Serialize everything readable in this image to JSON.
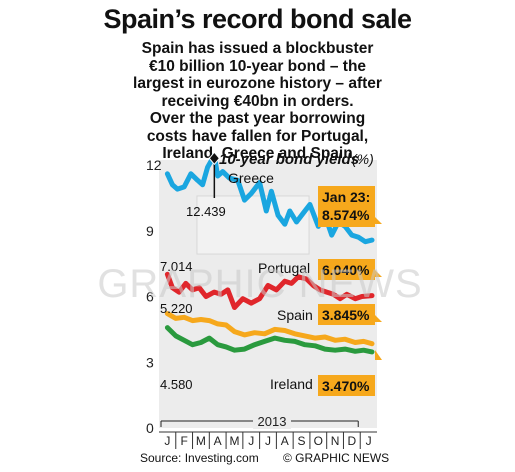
{
  "title": "Spain’s record bond sale",
  "subtitle_lines": [
    "Spain has issued a blockbuster",
    "€10 billion 10-year bond – the",
    "largest in eurozone history – after",
    "receiving €40bn in orders.",
    "Over the past year borrowing",
    "costs have fallen for Portugal,",
    "Ireland, Greece and Spain"
  ],
  "source": "Source: Investing.com",
  "credit": "© GRAPHIC NEWS",
  "watermark": "GRAPHIC NEWS",
  "chart_data": {
    "type": "line",
    "title": "10-year bond yields",
    "unit": "(%)",
    "x_axis": {
      "month_labels": [
        "J",
        "F",
        "M",
        "A",
        "M",
        "J",
        "J",
        "A",
        "S",
        "O",
        "N",
        "D",
        "J"
      ],
      "year_label": "2013"
    },
    "ylim": [
      0,
      12
    ],
    "y_ticks": [
      0,
      3,
      6,
      9,
      12
    ],
    "grid": false,
    "series": [
      {
        "name": "Greece",
        "color": "#1aa6e0",
        "x": [
          0,
          0.3,
          0.6,
          1.0,
          1.4,
          1.8,
          2.1,
          2.4,
          2.8,
          3.0,
          3.3,
          3.7,
          4.2,
          4.6,
          5.0,
          5.5,
          5.9,
          6.2,
          6.6,
          7.0,
          7.3,
          7.7,
          8.1,
          8.5,
          9.0,
          9.4,
          9.8,
          10.2,
          10.6,
          11.0,
          11.4,
          11.8,
          12.2
        ],
        "values": [
          11.6,
          11.1,
          10.9,
          11.0,
          11.6,
          11.3,
          11.1,
          11.9,
          12.44,
          11.5,
          11.7,
          11.4,
          11.3,
          10.4,
          10.7,
          11.2,
          9.9,
          10.8,
          9.7,
          9.3,
          9.9,
          9.4,
          9.8,
          10.2,
          9.2,
          9.7,
          8.8,
          9.4,
          9.2,
          8.8,
          8.7,
          8.5,
          8.574
        ]
      },
      {
        "name": "Portugal",
        "color": "#e0262b",
        "x": [
          0,
          0.3,
          0.7,
          1.1,
          1.5,
          1.9,
          2.3,
          2.8,
          3.2,
          3.6,
          4.0,
          4.5,
          5.0,
          5.5,
          6.0,
          6.5,
          7.0,
          7.4,
          7.8,
          8.3,
          8.7,
          9.1,
          9.5,
          9.9,
          10.3,
          10.7,
          11.2,
          11.6,
          12.2
        ],
        "values": [
          7.014,
          6.4,
          6.2,
          6.6,
          6.3,
          6.4,
          6.0,
          6.2,
          6.1,
          6.3,
          5.5,
          5.9,
          5.7,
          5.9,
          6.5,
          6.3,
          6.7,
          6.6,
          6.9,
          6.8,
          6.5,
          6.3,
          6.2,
          6.1,
          5.9,
          6.1,
          5.9,
          6.0,
          6.04
        ]
      },
      {
        "name": "Spain",
        "color": "#f6a81c",
        "x": [
          0,
          0.5,
          1.0,
          1.5,
          2.0,
          2.5,
          3.0,
          3.5,
          4.0,
          4.6,
          5.2,
          5.8,
          6.4,
          7.0,
          7.6,
          8.2,
          8.8,
          9.4,
          10.0,
          10.6,
          11.2,
          11.7,
          12.2
        ],
        "values": [
          5.22,
          5.0,
          5.05,
          4.9,
          4.95,
          4.9,
          4.75,
          4.7,
          4.4,
          4.25,
          4.35,
          4.3,
          4.5,
          4.45,
          4.3,
          4.2,
          4.1,
          4.15,
          4.0,
          4.05,
          3.9,
          3.95,
          3.845
        ]
      },
      {
        "name": "Ireland",
        "color": "#2a9a3e",
        "x": [
          0,
          0.5,
          1.0,
          1.5,
          2.0,
          2.5,
          3.0,
          3.5,
          4.0,
          4.6,
          5.2,
          5.8,
          6.4,
          7.0,
          7.6,
          8.2,
          8.8,
          9.4,
          10.0,
          10.6,
          11.2,
          11.7,
          12.2
        ],
        "values": [
          4.58,
          4.2,
          4.0,
          3.8,
          3.9,
          4.1,
          3.8,
          3.7,
          3.55,
          3.6,
          3.8,
          3.95,
          4.1,
          4.0,
          3.95,
          3.8,
          3.75,
          3.6,
          3.55,
          3.6,
          3.5,
          3.55,
          3.47
        ]
      }
    ],
    "annotations": {
      "greece_peak": "12.439",
      "portugal_start": "7.014",
      "spain_start": "5.220",
      "ireland_start": "4.580"
    },
    "end_labels": {
      "greece_date": "Jan 23:",
      "greece_value": "8.574%",
      "portugal_value": "6.040%",
      "spain_value": "3.845%",
      "ireland_value": "3.470%"
    }
  }
}
